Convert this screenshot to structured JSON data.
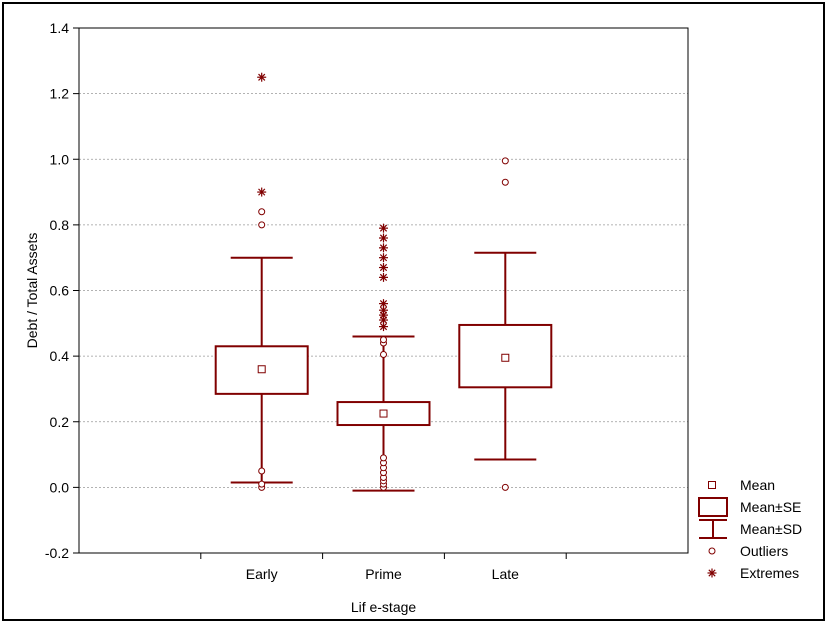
{
  "chart_data": {
    "type": "boxplot",
    "title": "",
    "xlabel": "Lif e-stage",
    "ylabel": "Debt / Total Assets",
    "ylim": [
      -0.2,
      1.4
    ],
    "yticks": [
      "-0.2",
      "0.0",
      "0.2",
      "0.4",
      "0.6",
      "0.8",
      "1.0",
      "1.2",
      "1.4"
    ],
    "grid": true,
    "legend_position": "right",
    "categories": [
      "Early",
      "Prime",
      "Late"
    ],
    "series": [
      {
        "category": "Early",
        "mean": 0.36,
        "se_low": 0.285,
        "se_high": 0.43,
        "sd_low": 0.015,
        "sd_high": 0.7,
        "outliers": [
          0.0,
          0.01,
          0.05,
          0.8,
          0.84
        ],
        "extremes": [
          0.9,
          1.25
        ]
      },
      {
        "category": "Prime",
        "mean": 0.225,
        "se_low": 0.19,
        "se_high": 0.26,
        "sd_low": -0.01,
        "sd_high": 0.46,
        "outliers": [
          0.0,
          0.01,
          0.02,
          0.03,
          0.045,
          0.06,
          0.075,
          0.09,
          0.405,
          0.44,
          0.45
        ],
        "extremes": [
          0.49,
          0.51,
          0.525,
          0.54,
          0.56,
          0.64,
          0.67,
          0.7,
          0.73,
          0.76,
          0.79
        ]
      },
      {
        "category": "Late",
        "mean": 0.395,
        "se_low": 0.305,
        "se_high": 0.495,
        "sd_low": 0.085,
        "sd_high": 0.715,
        "outliers": [
          0.0,
          0.93,
          0.995
        ],
        "extremes": []
      }
    ],
    "legend": [
      "Mean",
      "Mean±SE",
      "Mean±SD",
      "Outliers",
      "Extremes"
    ],
    "colors": {
      "series": "#800000",
      "grid": "#999999",
      "axis": "#000000"
    }
  }
}
